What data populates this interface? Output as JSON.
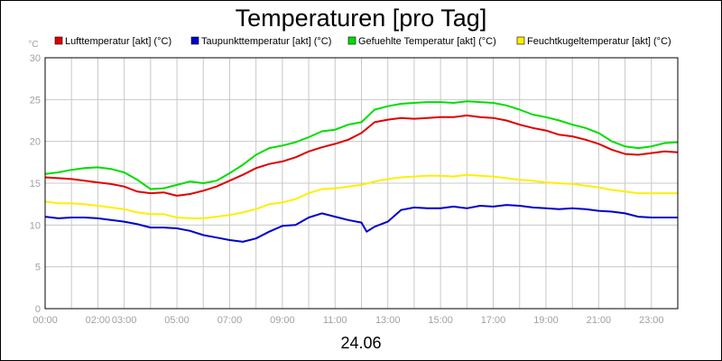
{
  "chart_data": {
    "type": "line",
    "title": "Temperaturen [pro Tag]",
    "ylabel": "°C",
    "xlabel": "24.06",
    "ylim": [
      0,
      30
    ],
    "xlim": [
      0,
      24
    ],
    "y_ticks": [
      0,
      5,
      10,
      15,
      20,
      25,
      30
    ],
    "x_ticks": [
      {
        "h": 0,
        "label": "00:00"
      },
      {
        "h": 2,
        "label": "02:00"
      },
      {
        "h": 3,
        "label": "03:00"
      },
      {
        "h": 5,
        "label": "05:00"
      },
      {
        "h": 7,
        "label": "07:00"
      },
      {
        "h": 9,
        "label": "09:00"
      },
      {
        "h": 11,
        "label": "11:00"
      },
      {
        "h": 13,
        "label": "13:00"
      },
      {
        "h": 15,
        "label": "15:00"
      },
      {
        "h": 17,
        "label": "17:00"
      },
      {
        "h": 19,
        "label": "19:00"
      },
      {
        "h": 21,
        "label": "21:00"
      },
      {
        "h": 23,
        "label": "23:00"
      }
    ],
    "grid": true,
    "legend_position": "top",
    "series": [
      {
        "name": "Lufttemperatur [akt] (°C)",
        "color": "#e00000",
        "x": [
          0,
          0.5,
          1,
          1.5,
          2,
          2.5,
          3,
          3.5,
          4,
          4.5,
          5,
          5.5,
          6,
          6.5,
          7,
          7.5,
          8,
          8.5,
          9,
          9.5,
          10,
          10.5,
          11,
          11.5,
          12,
          12.5,
          13,
          13.5,
          14,
          14.5,
          15,
          15.5,
          16,
          16.5,
          17,
          17.5,
          18,
          18.5,
          19,
          19.5,
          20,
          20.5,
          21,
          21.5,
          22,
          22.5,
          23,
          23.5,
          24
        ],
        "y": [
          15.7,
          15.6,
          15.5,
          15.3,
          15.1,
          14.9,
          14.6,
          14.0,
          13.8,
          13.9,
          13.5,
          13.7,
          14.1,
          14.6,
          15.3,
          16.0,
          16.8,
          17.3,
          17.6,
          18.1,
          18.8,
          19.3,
          19.7,
          20.2,
          21.0,
          22.3,
          22.6,
          22.8,
          22.7,
          22.8,
          22.9,
          22.9,
          23.1,
          22.9,
          22.8,
          22.5,
          22.0,
          21.6,
          21.3,
          20.8,
          20.6,
          20.2,
          19.7,
          19.0,
          18.5,
          18.4,
          18.6,
          18.8,
          18.7
        ]
      },
      {
        "name": "Taupunkttemperatur [akt] (°C)",
        "color": "#0000cc",
        "x": [
          0,
          0.5,
          1,
          1.5,
          2,
          2.5,
          3,
          3.5,
          4,
          4.5,
          5,
          5.5,
          6,
          6.5,
          7,
          7.5,
          8,
          8.5,
          9,
          9.5,
          10,
          10.5,
          11,
          11.5,
          12,
          12.2,
          12.5,
          13,
          13.5,
          14,
          14.5,
          15,
          15.5,
          16,
          16.5,
          17,
          17.5,
          18,
          18.5,
          19,
          19.5,
          20,
          20.5,
          21,
          21.5,
          22,
          22.5,
          23,
          23.5,
          24
        ],
        "y": [
          11.0,
          10.8,
          10.9,
          10.9,
          10.8,
          10.6,
          10.4,
          10.1,
          9.7,
          9.7,
          9.6,
          9.3,
          8.8,
          8.5,
          8.2,
          8.0,
          8.4,
          9.2,
          9.9,
          10.0,
          10.9,
          11.4,
          11.0,
          10.6,
          10.3,
          9.2,
          9.8,
          10.4,
          11.8,
          12.1,
          12.0,
          12.0,
          12.2,
          12.0,
          12.3,
          12.2,
          12.4,
          12.3,
          12.1,
          12.0,
          11.9,
          12.0,
          11.9,
          11.7,
          11.6,
          11.4,
          11.0,
          10.9,
          10.9,
          10.9
        ]
      },
      {
        "name": "Gefuehlte Temperatur [akt] (°C)",
        "color": "#00dd00",
        "x": [
          0,
          0.5,
          1,
          1.5,
          2,
          2.5,
          3,
          3.5,
          4,
          4.5,
          5,
          5.5,
          6,
          6.5,
          7,
          7.5,
          8,
          8.5,
          9,
          9.5,
          10,
          10.5,
          11,
          11.5,
          12,
          12.5,
          13,
          13.5,
          14,
          14.5,
          15,
          15.5,
          16,
          16.5,
          17,
          17.5,
          18,
          18.5,
          19,
          19.5,
          20,
          20.5,
          21,
          21.5,
          22,
          22.5,
          23,
          23.5,
          24
        ],
        "y": [
          16.1,
          16.3,
          16.6,
          16.8,
          16.9,
          16.7,
          16.3,
          15.4,
          14.3,
          14.4,
          14.8,
          15.2,
          15.0,
          15.3,
          16.2,
          17.2,
          18.4,
          19.2,
          19.5,
          19.9,
          20.5,
          21.2,
          21.4,
          22.0,
          22.3,
          23.8,
          24.2,
          24.5,
          24.6,
          24.7,
          24.7,
          24.6,
          24.8,
          24.7,
          24.6,
          24.3,
          23.8,
          23.2,
          22.9,
          22.5,
          22.0,
          21.6,
          21.0,
          20.0,
          19.4,
          19.2,
          19.4,
          19.8,
          19.9
        ]
      },
      {
        "name": "Feuchtkugeltemperatur [akt] (°C)",
        "color": "#ffee00",
        "x": [
          0,
          0.5,
          1,
          1.5,
          2,
          2.5,
          3,
          3.5,
          4,
          4.5,
          5,
          5.5,
          6,
          6.5,
          7,
          7.5,
          8,
          8.5,
          9,
          9.5,
          10,
          10.5,
          11,
          11.5,
          12,
          12.5,
          13,
          13.5,
          14,
          14.5,
          15,
          15.5,
          16,
          16.5,
          17,
          17.5,
          18,
          18.5,
          19,
          19.5,
          20,
          20.5,
          21,
          21.5,
          22,
          22.5,
          23,
          23.5,
          24
        ],
        "y": [
          12.8,
          12.6,
          12.6,
          12.5,
          12.3,
          12.1,
          11.9,
          11.5,
          11.3,
          11.3,
          10.9,
          10.8,
          10.8,
          11.0,
          11.2,
          11.5,
          11.9,
          12.5,
          12.7,
          13.1,
          13.8,
          14.3,
          14.4,
          14.6,
          14.8,
          15.2,
          15.5,
          15.7,
          15.8,
          15.9,
          15.9,
          15.8,
          16.0,
          15.9,
          15.8,
          15.6,
          15.4,
          15.3,
          15.1,
          15.0,
          14.9,
          14.7,
          14.5,
          14.2,
          14.0,
          13.8,
          13.8,
          13.8,
          13.8
        ]
      }
    ]
  }
}
